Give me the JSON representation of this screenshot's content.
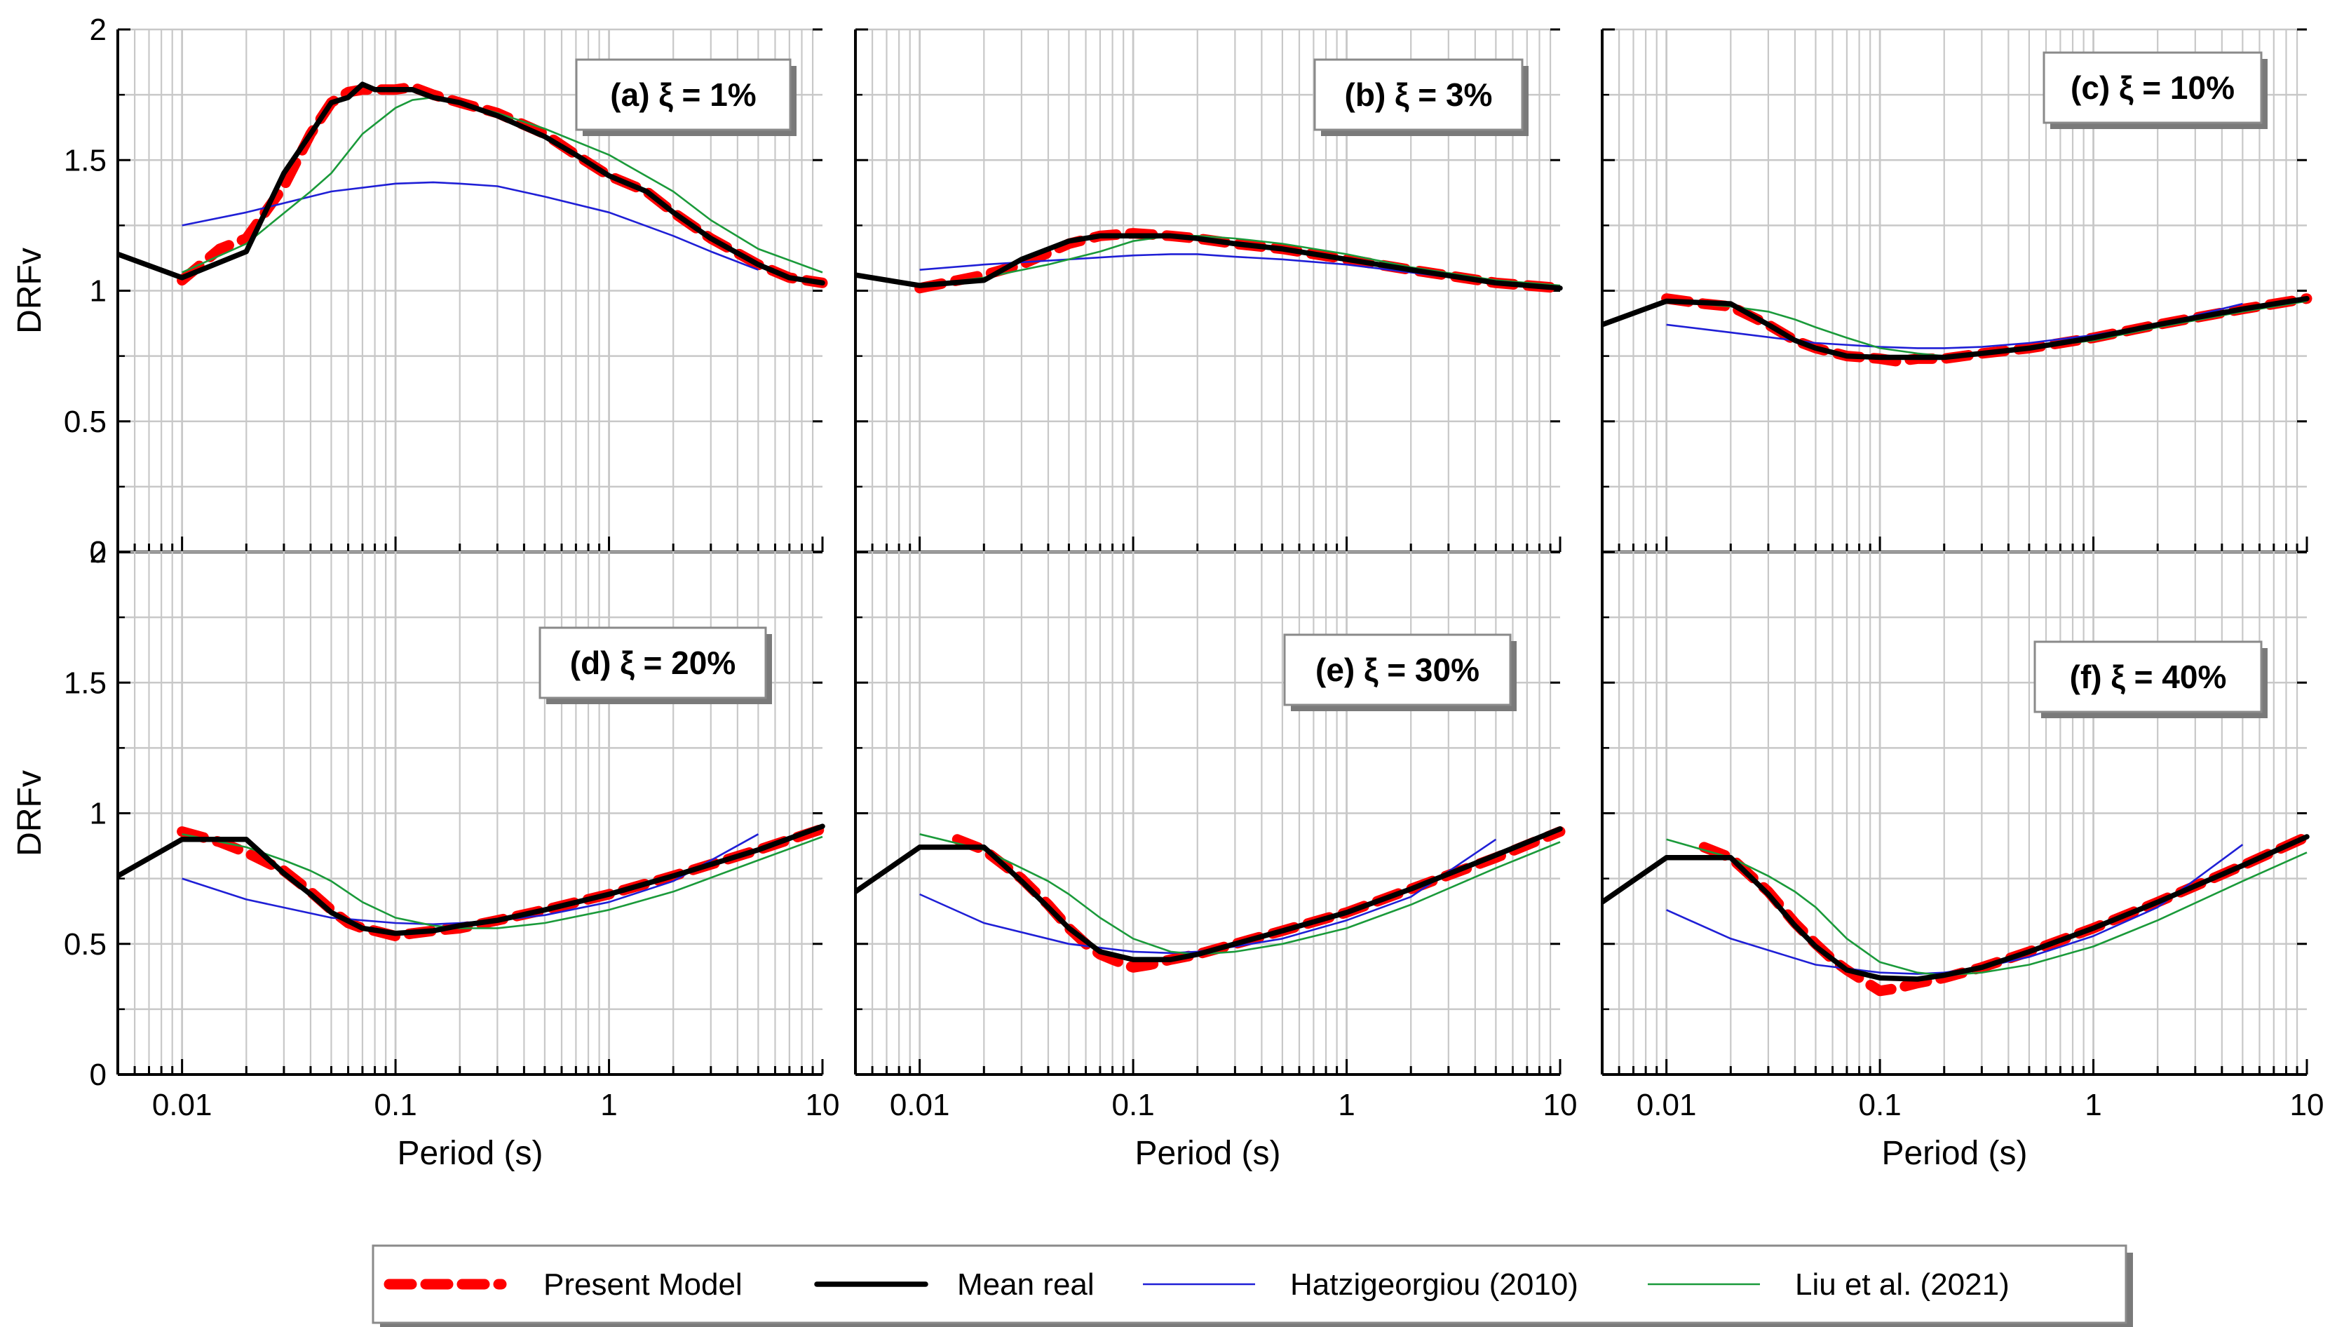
{
  "chart_data": [
    {
      "type": "line",
      "title": "(a) ξ = 1%",
      "xlabel": "",
      "ylabel": "DRFv",
      "xscale": "log",
      "xlim": [
        0.005,
        10
      ],
      "ylim": [
        0,
        2
      ],
      "x_ticks": [
        "0.01",
        "0.1",
        "1",
        "10"
      ],
      "y_ticks": [
        "0",
        "0.5",
        "1",
        "1.5",
        "2"
      ],
      "show_x_tick_labels": false,
      "show_y_tick_labels": true,
      "grid": true,
      "series": [
        {
          "name": "Present Model",
          "x": [
            0.01,
            0.015,
            0.02,
            0.03,
            0.04,
            0.05,
            0.06,
            0.07,
            0.08,
            0.1,
            0.12,
            0.15,
            0.2,
            0.3,
            0.5,
            0.7,
            1,
            1.5,
            2,
            3,
            5,
            7,
            10
          ],
          "y": [
            1.04,
            1.16,
            1.2,
            1.4,
            1.6,
            1.72,
            1.76,
            1.77,
            1.77,
            1.77,
            1.78,
            1.75,
            1.72,
            1.68,
            1.6,
            1.52,
            1.44,
            1.38,
            1.3,
            1.2,
            1.1,
            1.05,
            1.03
          ]
        },
        {
          "name": "Mean real",
          "x": [
            0.005,
            0.01,
            0.02,
            0.03,
            0.04,
            0.05,
            0.06,
            0.07,
            0.08,
            0.1,
            0.12,
            0.15,
            0.2,
            0.3,
            0.5,
            0.7,
            1,
            1.5,
            2,
            3,
            5,
            7,
            10
          ],
          "y": [
            1.14,
            1.05,
            1.15,
            1.45,
            1.6,
            1.72,
            1.74,
            1.79,
            1.77,
            1.77,
            1.77,
            1.74,
            1.72,
            1.67,
            1.59,
            1.52,
            1.44,
            1.38,
            1.3,
            1.2,
            1.1,
            1.05,
            1.03
          ]
        },
        {
          "name": "Hatzigeorgiou (2010)",
          "x": [
            0.01,
            0.02,
            0.05,
            0.1,
            0.15,
            0.2,
            0.3,
            0.5,
            1,
            2,
            3,
            5
          ],
          "y": [
            1.25,
            1.3,
            1.38,
            1.41,
            1.415,
            1.41,
            1.4,
            1.36,
            1.3,
            1.21,
            1.15,
            1.08
          ]
        },
        {
          "name": "Liu et al. (2021)",
          "x": [
            0.01,
            0.02,
            0.04,
            0.05,
            0.07,
            0.1,
            0.12,
            0.15,
            0.2,
            0.3,
            0.5,
            1,
            2,
            3,
            5,
            10
          ],
          "y": [
            1.07,
            1.18,
            1.38,
            1.45,
            1.6,
            1.7,
            1.73,
            1.74,
            1.72,
            1.68,
            1.62,
            1.52,
            1.38,
            1.27,
            1.16,
            1.07
          ]
        }
      ]
    },
    {
      "type": "line",
      "title": "(b) ξ = 3%",
      "xlabel": "",
      "ylabel": "",
      "xscale": "log",
      "xlim": [
        0.005,
        10
      ],
      "ylim": [
        0,
        2
      ],
      "x_ticks": [
        "0.01",
        "0.1",
        "1",
        "10"
      ],
      "y_ticks": [
        "0",
        "0.5",
        "1",
        "1.5",
        "2"
      ],
      "show_x_tick_labels": false,
      "show_y_tick_labels": false,
      "grid": true,
      "series": [
        {
          "name": "Present Model",
          "x": [
            0.01,
            0.02,
            0.03,
            0.05,
            0.07,
            0.1,
            0.15,
            0.2,
            0.3,
            0.5,
            1,
            2,
            5,
            10
          ],
          "y": [
            1.01,
            1.06,
            1.1,
            1.18,
            1.21,
            1.22,
            1.21,
            1.2,
            1.18,
            1.16,
            1.12,
            1.08,
            1.03,
            1.01
          ]
        },
        {
          "name": "Mean real",
          "x": [
            0.005,
            0.01,
            0.02,
            0.03,
            0.05,
            0.07,
            0.1,
            0.15,
            0.2,
            0.3,
            0.5,
            1,
            2,
            5,
            10
          ],
          "y": [
            1.06,
            1.02,
            1.04,
            1.12,
            1.19,
            1.21,
            1.21,
            1.21,
            1.2,
            1.18,
            1.16,
            1.12,
            1.08,
            1.03,
            1.01
          ]
        },
        {
          "name": "Hatzigeorgiou (2010)",
          "x": [
            0.01,
            0.02,
            0.05,
            0.1,
            0.15,
            0.2,
            0.3,
            0.5,
            1,
            2,
            5
          ],
          "y": [
            1.08,
            1.1,
            1.12,
            1.135,
            1.14,
            1.14,
            1.13,
            1.12,
            1.1,
            1.07,
            1.03
          ]
        },
        {
          "name": "Liu et al. (2021)",
          "x": [
            0.01,
            0.02,
            0.04,
            0.07,
            0.1,
            0.15,
            0.2,
            0.3,
            0.5,
            1,
            2,
            5,
            10
          ],
          "y": [
            1.02,
            1.05,
            1.1,
            1.15,
            1.19,
            1.21,
            1.21,
            1.2,
            1.18,
            1.14,
            1.09,
            1.04,
            1.02
          ]
        }
      ]
    },
    {
      "type": "line",
      "title": "(c) ξ = 10%",
      "xlabel": "",
      "ylabel": "",
      "xscale": "log",
      "xlim": [
        0.005,
        10
      ],
      "ylim": [
        0,
        2
      ],
      "x_ticks": [
        "0.01",
        "0.1",
        "1",
        "10"
      ],
      "y_ticks": [
        "0",
        "0.5",
        "1",
        "1.5",
        "2"
      ],
      "show_x_tick_labels": false,
      "show_y_tick_labels": false,
      "grid": true,
      "series": [
        {
          "name": "Present Model",
          "x": [
            0.01,
            0.015,
            0.02,
            0.03,
            0.04,
            0.05,
            0.07,
            0.1,
            0.12,
            0.15,
            0.2,
            0.3,
            0.5,
            1,
            2,
            5,
            10
          ],
          "y": [
            0.97,
            0.95,
            0.94,
            0.87,
            0.81,
            0.78,
            0.75,
            0.74,
            0.73,
            0.74,
            0.74,
            0.76,
            0.78,
            0.82,
            0.87,
            0.93,
            0.97
          ]
        },
        {
          "name": "Mean real",
          "x": [
            0.005,
            0.01,
            0.02,
            0.03,
            0.04,
            0.05,
            0.07,
            0.1,
            0.15,
            0.2,
            0.3,
            0.5,
            1,
            2,
            5,
            10
          ],
          "y": [
            0.87,
            0.96,
            0.95,
            0.87,
            0.81,
            0.78,
            0.75,
            0.745,
            0.745,
            0.745,
            0.76,
            0.78,
            0.82,
            0.87,
            0.93,
            0.97
          ]
        },
        {
          "name": "Hatzigeorgiou (2010)",
          "x": [
            0.01,
            0.02,
            0.05,
            0.1,
            0.15,
            0.2,
            0.3,
            0.5,
            1,
            2,
            5
          ],
          "y": [
            0.87,
            0.84,
            0.8,
            0.785,
            0.78,
            0.78,
            0.785,
            0.8,
            0.83,
            0.87,
            0.95
          ]
        },
        {
          "name": "Liu et al. (2021)",
          "x": [
            0.01,
            0.02,
            0.03,
            0.04,
            0.05,
            0.07,
            0.1,
            0.15,
            0.2,
            0.3,
            0.5,
            1,
            2,
            5,
            10
          ],
          "y": [
            0.96,
            0.94,
            0.92,
            0.89,
            0.86,
            0.82,
            0.78,
            0.76,
            0.75,
            0.76,
            0.78,
            0.81,
            0.86,
            0.92,
            0.96
          ]
        }
      ]
    },
    {
      "type": "line",
      "title": "(d) ξ = 20%",
      "xlabel": "Period (s)",
      "ylabel": "DRFv",
      "xscale": "log",
      "xlim": [
        0.005,
        10
      ],
      "ylim": [
        0,
        2
      ],
      "x_ticks": [
        "0.01",
        "0.1",
        "1",
        "10"
      ],
      "y_ticks": [
        "0",
        "0.5",
        "1",
        "1.5",
        "2"
      ],
      "show_x_tick_labels": true,
      "show_y_tick_labels": true,
      "grid": true,
      "series": [
        {
          "name": "Present Model",
          "x": [
            0.01,
            0.015,
            0.02,
            0.03,
            0.04,
            0.05,
            0.06,
            0.07,
            0.08,
            0.1,
            0.12,
            0.15,
            0.2,
            0.3,
            0.5,
            1,
            2,
            5,
            10
          ],
          "y": [
            0.93,
            0.89,
            0.85,
            0.78,
            0.7,
            0.63,
            0.58,
            0.56,
            0.55,
            0.53,
            0.54,
            0.55,
            0.56,
            0.59,
            0.63,
            0.69,
            0.76,
            0.86,
            0.94
          ]
        },
        {
          "name": "Mean real",
          "x": [
            0.005,
            0.01,
            0.02,
            0.03,
            0.04,
            0.05,
            0.07,
            0.1,
            0.15,
            0.2,
            0.3,
            0.5,
            1,
            2,
            5,
            10
          ],
          "y": [
            0.76,
            0.9,
            0.9,
            0.77,
            0.69,
            0.62,
            0.56,
            0.54,
            0.55,
            0.57,
            0.59,
            0.63,
            0.69,
            0.76,
            0.86,
            0.95
          ]
        },
        {
          "name": "Hatzigeorgiou (2010)",
          "x": [
            0.01,
            0.02,
            0.05,
            0.1,
            0.15,
            0.2,
            0.3,
            0.5,
            1,
            2,
            5
          ],
          "y": [
            0.75,
            0.67,
            0.6,
            0.58,
            0.575,
            0.58,
            0.59,
            0.61,
            0.66,
            0.74,
            0.92
          ]
        },
        {
          "name": "Liu et al. (2021)",
          "x": [
            0.01,
            0.02,
            0.03,
            0.04,
            0.05,
            0.07,
            0.1,
            0.15,
            0.2,
            0.3,
            0.5,
            1,
            2,
            5,
            10
          ],
          "y": [
            0.92,
            0.87,
            0.82,
            0.78,
            0.74,
            0.66,
            0.6,
            0.57,
            0.56,
            0.56,
            0.58,
            0.63,
            0.7,
            0.82,
            0.91
          ]
        }
      ]
    },
    {
      "type": "line",
      "title": "(e) ξ = 30%",
      "xlabel": "Period (s)",
      "ylabel": "",
      "xscale": "log",
      "xlim": [
        0.005,
        10
      ],
      "ylim": [
        0,
        2
      ],
      "x_ticks": [
        "0.01",
        "0.1",
        "1",
        "10"
      ],
      "y_ticks": [
        "0",
        "0.5",
        "1",
        "1.5",
        "2"
      ],
      "show_x_tick_labels": true,
      "show_y_tick_labels": false,
      "grid": true,
      "series": [
        {
          "name": "Present Model",
          "x": [
            0.015,
            0.02,
            0.03,
            0.04,
            0.05,
            0.06,
            0.07,
            0.08,
            0.1,
            0.12,
            0.15,
            0.2,
            0.3,
            0.5,
            1,
            2,
            5,
            10
          ],
          "y": [
            0.9,
            0.86,
            0.75,
            0.65,
            0.56,
            0.5,
            0.46,
            0.44,
            0.41,
            0.42,
            0.44,
            0.46,
            0.5,
            0.55,
            0.62,
            0.71,
            0.83,
            0.93
          ]
        },
        {
          "name": "Mean real",
          "x": [
            0.005,
            0.01,
            0.02,
            0.03,
            0.04,
            0.05,
            0.07,
            0.1,
            0.15,
            0.2,
            0.3,
            0.5,
            1,
            2,
            5,
            10
          ],
          "y": [
            0.7,
            0.87,
            0.87,
            0.74,
            0.64,
            0.56,
            0.47,
            0.44,
            0.44,
            0.46,
            0.5,
            0.55,
            0.62,
            0.71,
            0.84,
            0.94
          ]
        },
        {
          "name": "Hatzigeorgiou (2010)",
          "x": [
            0.01,
            0.02,
            0.05,
            0.1,
            0.15,
            0.2,
            0.3,
            0.5,
            1,
            2,
            5
          ],
          "y": [
            0.69,
            0.58,
            0.5,
            0.47,
            0.465,
            0.47,
            0.49,
            0.52,
            0.59,
            0.68,
            0.9
          ]
        },
        {
          "name": "Liu et al. (2021)",
          "x": [
            0.01,
            0.02,
            0.03,
            0.04,
            0.05,
            0.07,
            0.1,
            0.15,
            0.2,
            0.3,
            0.5,
            1,
            2,
            5,
            10
          ],
          "y": [
            0.92,
            0.86,
            0.79,
            0.74,
            0.69,
            0.6,
            0.52,
            0.47,
            0.46,
            0.47,
            0.5,
            0.56,
            0.65,
            0.79,
            0.89
          ]
        }
      ]
    },
    {
      "type": "line",
      "title": "(f) ξ = 40%",
      "xlabel": "Period (s)",
      "ylabel": "",
      "xscale": "log",
      "xlim": [
        0.005,
        10
      ],
      "ylim": [
        0,
        2
      ],
      "x_ticks": [
        "0.01",
        "0.1",
        "1",
        "10"
      ],
      "y_ticks": [
        "0",
        "0.5",
        "1",
        "1.5",
        "2"
      ],
      "show_x_tick_labels": true,
      "show_y_tick_labels": false,
      "grid": true,
      "series": [
        {
          "name": "Present Model",
          "x": [
            0.015,
            0.02,
            0.03,
            0.04,
            0.05,
            0.06,
            0.07,
            0.08,
            0.1,
            0.12,
            0.15,
            0.2,
            0.3,
            0.5,
            1,
            2,
            5,
            10
          ],
          "y": [
            0.87,
            0.83,
            0.7,
            0.58,
            0.5,
            0.44,
            0.4,
            0.37,
            0.32,
            0.33,
            0.35,
            0.37,
            0.41,
            0.47,
            0.56,
            0.66,
            0.8,
            0.91
          ]
        },
        {
          "name": "Mean real",
          "x": [
            0.005,
            0.01,
            0.02,
            0.03,
            0.04,
            0.05,
            0.07,
            0.1,
            0.15,
            0.2,
            0.3,
            0.5,
            1,
            2,
            5,
            10
          ],
          "y": [
            0.66,
            0.83,
            0.83,
            0.69,
            0.57,
            0.49,
            0.4,
            0.37,
            0.365,
            0.38,
            0.41,
            0.47,
            0.56,
            0.66,
            0.8,
            0.91
          ]
        },
        {
          "name": "Hatzigeorgiou (2010)",
          "x": [
            0.01,
            0.02,
            0.05,
            0.1,
            0.15,
            0.2,
            0.3,
            0.5,
            1,
            2,
            5
          ],
          "y": [
            0.63,
            0.52,
            0.42,
            0.39,
            0.385,
            0.39,
            0.41,
            0.45,
            0.53,
            0.64,
            0.88
          ]
        },
        {
          "name": "Liu et al. (2021)",
          "x": [
            0.01,
            0.02,
            0.03,
            0.04,
            0.05,
            0.07,
            0.1,
            0.15,
            0.2,
            0.3,
            0.5,
            1,
            2,
            5,
            10
          ],
          "y": [
            0.9,
            0.83,
            0.76,
            0.7,
            0.64,
            0.52,
            0.43,
            0.39,
            0.38,
            0.39,
            0.42,
            0.49,
            0.59,
            0.74,
            0.85
          ]
        }
      ]
    }
  ],
  "legend": {
    "placement": "bottom-center",
    "items": [
      {
        "label": "Present Model",
        "color": "#ff0000",
        "style": "dashed"
      },
      {
        "label": "Mean real",
        "color": "#000000",
        "style": "solid-thick"
      },
      {
        "label": "Hatzigeorgiou (2010)",
        "color": "#1f1fd6",
        "style": "solid-thin"
      },
      {
        "label": "Liu et al. (2021)",
        "color": "#1a9a3a",
        "style": "solid-thin"
      }
    ]
  },
  "colors": {
    "present_model": "#ff0000",
    "mean_real": "#000000",
    "hatzigeorgiou": "#1f1fd6",
    "liu": "#1a9a3a",
    "grid": "#c8c8c8"
  }
}
